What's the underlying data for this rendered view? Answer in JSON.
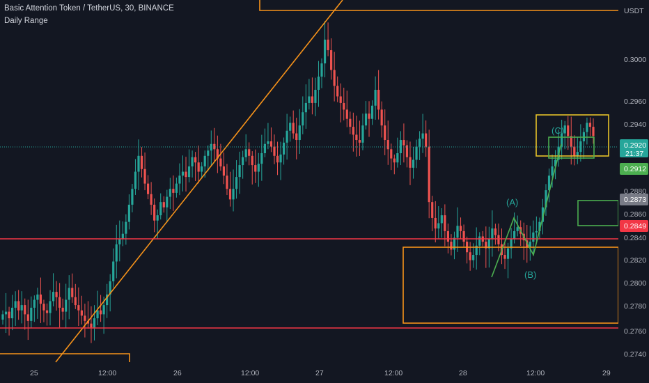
{
  "header": {
    "symbol_line": "Basic Attention Token / TetherUS, 30, BINANCE",
    "indicator": "Daily Range"
  },
  "currency": "USDT",
  "colors": {
    "background": "#131722",
    "up": "#26a69a",
    "down": "#ef5350",
    "orange": "#f7931a",
    "yellow": "#e6c229",
    "red_line": "#f23645",
    "green_box": "#4caf50",
    "label_bg": "#2a2e39",
    "label_fg": "#b2b5be"
  },
  "price_tags": [
    {
      "value": "0.2920",
      "sub": "21:37",
      "bg": "#26a69a",
      "fg": "#ffffff"
    },
    {
      "value": "0.2912",
      "bg": "#4caf50",
      "fg": "#ffffff"
    },
    {
      "value": "0.2873",
      "bg": "#787b86",
      "fg": "#ffffff"
    },
    {
      "value": "0.2849",
      "bg": "#f23645",
      "fg": "#ffffff"
    }
  ],
  "annotations": [
    "(A)",
    "(B)",
    "(C)"
  ],
  "chart_data": {
    "type": "candlestick",
    "title": "Basic Attention Token / TetherUS, 30, BINANCE",
    "y_axis": {
      "unit": "USDT",
      "ticks": [
        "0.3000",
        "0.2960",
        "0.2940",
        "0.2880",
        "0.2860",
        "0.2840",
        "0.2820",
        "0.2800",
        "0.2780",
        "0.2760",
        "0.2740"
      ],
      "range": [
        0.2733,
        0.3023
      ]
    },
    "x_axis": {
      "ticks": [
        "25",
        "12:00",
        "26",
        "12:00",
        "27",
        "12:00",
        "28",
        "12:00",
        "29"
      ]
    },
    "close_series": [
      0.2785,
      0.2787,
      0.2782,
      0.279,
      0.2795,
      0.2788,
      0.2792,
      0.2785,
      0.278,
      0.279,
      0.2796,
      0.28,
      0.2793,
      0.2788,
      0.2786,
      0.2795,
      0.2802,
      0.2798,
      0.279,
      0.2787,
      0.2796,
      0.2805,
      0.2798,
      0.2792,
      0.2788,
      0.2784,
      0.278,
      0.2778,
      0.2775,
      0.2782,
      0.2788,
      0.2785,
      0.2792,
      0.28,
      0.281,
      0.2825,
      0.2838,
      0.2842,
      0.2846,
      0.2855,
      0.2868,
      0.288,
      0.2893,
      0.2905,
      0.2895,
      0.2884,
      0.2876,
      0.2868,
      0.2856,
      0.286,
      0.287,
      0.2866,
      0.2874,
      0.288,
      0.2877,
      0.2884,
      0.289,
      0.2893,
      0.2889,
      0.2897,
      0.2904,
      0.29,
      0.2893,
      0.2897,
      0.2905,
      0.2909,
      0.2914,
      0.291,
      0.2903,
      0.2897,
      0.289,
      0.288,
      0.2872,
      0.288,
      0.2889,
      0.2898,
      0.2904,
      0.291,
      0.2905,
      0.2898,
      0.2893,
      0.2899,
      0.2907,
      0.2914,
      0.2916,
      0.2912,
      0.2905,
      0.29,
      0.2906,
      0.2915,
      0.2924,
      0.293,
      0.2922,
      0.2917,
      0.2928,
      0.2938,
      0.2945,
      0.295,
      0.2945,
      0.2955,
      0.2965,
      0.2975,
      0.2993,
      0.2985,
      0.297,
      0.2958,
      0.295,
      0.2945,
      0.294,
      0.2933,
      0.2927,
      0.2921,
      0.2917,
      0.2915,
      0.2928,
      0.2937,
      0.2933,
      0.2943,
      0.2955,
      0.294,
      0.2928,
      0.2917,
      0.291,
      0.2903,
      0.29,
      0.2907,
      0.2917,
      0.2913,
      0.2904,
      0.2896,
      0.2902,
      0.2912,
      0.2918,
      0.2922,
      0.2912,
      0.287,
      0.2858,
      0.285,
      0.2854,
      0.286,
      0.2848,
      0.284,
      0.2834,
      0.2843,
      0.2852,
      0.2848,
      0.284,
      0.2832,
      0.2826,
      0.283,
      0.2837,
      0.2844,
      0.284,
      0.2835,
      0.2842,
      0.285,
      0.2845,
      0.2838,
      0.283,
      0.2827,
      0.2835,
      0.2842,
      0.2848,
      0.2851,
      0.2846,
      0.2841,
      0.2836,
      0.284,
      0.2847,
      0.2848,
      0.2855,
      0.2866,
      0.2879,
      0.289,
      0.2897,
      0.2902,
      0.2912,
      0.2922,
      0.2928,
      0.292,
      0.2912,
      0.2905,
      0.2908,
      0.2916,
      0.2923,
      0.293,
      0.2927,
      0.292
    ]
  }
}
